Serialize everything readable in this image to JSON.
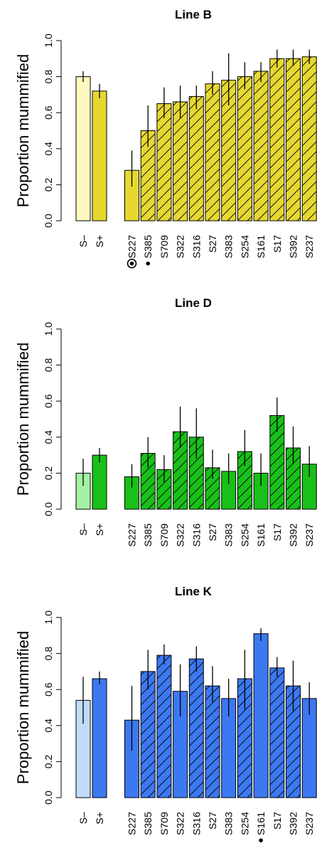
{
  "chart_data": [
    {
      "type": "bar",
      "title": "Line B",
      "ylabel": "Proportion mummified",
      "ylim": [
        0,
        1.0
      ],
      "yticks": [
        "0.0",
        "0.2",
        "0.4",
        "0.6",
        "0.8",
        "1.0"
      ],
      "colors": {
        "control_light": "#fff8c0",
        "main": "#e6d830"
      },
      "controls": [
        {
          "label": "S–",
          "value": 0.8,
          "err": [
            0.77,
            0.83
          ]
        },
        {
          "label": "S+",
          "value": 0.72,
          "err": [
            0.68,
            0.76
          ]
        }
      ],
      "categories": [
        "S227",
        "S385",
        "S709",
        "S322",
        "S316",
        "S27",
        "S383",
        "S254",
        "S161",
        "S17",
        "S392",
        "S237"
      ],
      "values": [
        0.28,
        0.5,
        0.65,
        0.66,
        0.69,
        0.76,
        0.78,
        0.8,
        0.83,
        0.9,
        0.9,
        0.91
      ],
      "err_low": [
        0.19,
        0.41,
        0.57,
        0.57,
        0.62,
        0.7,
        0.64,
        0.73,
        0.77,
        0.85,
        0.86,
        0.87
      ],
      "err_high": [
        0.39,
        0.64,
        0.74,
        0.75,
        0.75,
        0.83,
        0.93,
        0.88,
        0.88,
        0.95,
        0.95,
        0.95
      ],
      "hatched": [
        false,
        true,
        true,
        true,
        true,
        true,
        true,
        true,
        true,
        true,
        true,
        true
      ],
      "markers": [
        {
          "category": "S227",
          "symbol": "circled-dot"
        },
        {
          "category": "S385",
          "symbol": "dot"
        }
      ]
    },
    {
      "type": "bar",
      "title": "Line D",
      "ylabel": "Proportion mummified",
      "ylim": [
        0,
        1.0
      ],
      "yticks": [
        "0.0",
        "0.2",
        "0.4",
        "0.6",
        "0.8",
        "1.0"
      ],
      "colors": {
        "control_light": "#a4f2a4",
        "main": "#19c019"
      },
      "controls": [
        {
          "label": "S–",
          "value": 0.2,
          "err": [
            0.13,
            0.28
          ]
        },
        {
          "label": "S+",
          "value": 0.3,
          "err": [
            0.26,
            0.34
          ]
        }
      ],
      "categories": [
        "S227",
        "S385",
        "S709",
        "S322",
        "S316",
        "S27",
        "S383",
        "S254",
        "S161",
        "S17",
        "S392",
        "S237"
      ],
      "values": [
        0.18,
        0.31,
        0.22,
        0.43,
        0.4,
        0.23,
        0.21,
        0.32,
        0.2,
        0.52,
        0.34,
        0.25
      ],
      "err_low": [
        0.12,
        0.23,
        0.15,
        0.34,
        0.28,
        0.17,
        0.14,
        0.24,
        0.13,
        0.43,
        0.25,
        0.18
      ],
      "err_high": [
        0.25,
        0.4,
        0.3,
        0.57,
        0.56,
        0.33,
        0.31,
        0.44,
        0.31,
        0.62,
        0.46,
        0.35
      ],
      "hatched": [
        false,
        true,
        true,
        true,
        true,
        true,
        false,
        true,
        false,
        true,
        true,
        false
      ],
      "markers": []
    },
    {
      "type": "bar",
      "title": "Line K",
      "ylabel": "Proportion mummified",
      "ylim": [
        0,
        1.0
      ],
      "yticks": [
        "0.0",
        "0.2",
        "0.4",
        "0.6",
        "0.8",
        "1.0"
      ],
      "colors": {
        "control_light": "#c0dcfa",
        "main": "#3c78f0"
      },
      "controls": [
        {
          "label": "S–",
          "value": 0.54,
          "err": [
            0.41,
            0.67
          ]
        },
        {
          "label": "S+",
          "value": 0.66,
          "err": [
            0.63,
            0.7
          ]
        }
      ],
      "categories": [
        "S227",
        "S385",
        "S709",
        "S322",
        "S316",
        "S27",
        "S383",
        "S254",
        "S161",
        "S17",
        "S392",
        "S237"
      ],
      "values": [
        0.43,
        0.7,
        0.79,
        0.59,
        0.77,
        0.62,
        0.55,
        0.66,
        0.91,
        0.72,
        0.62,
        0.55
      ],
      "err_low": [
        0.26,
        0.6,
        0.74,
        0.45,
        0.7,
        0.53,
        0.45,
        0.49,
        0.87,
        0.67,
        0.48,
        0.46
      ],
      "err_high": [
        0.62,
        0.82,
        0.85,
        0.74,
        0.84,
        0.73,
        0.66,
        0.82,
        0.94,
        0.78,
        0.76,
        0.64
      ],
      "hatched": [
        false,
        true,
        true,
        false,
        true,
        true,
        false,
        true,
        false,
        true,
        true,
        false
      ],
      "markers": [
        {
          "category": "S161",
          "symbol": "dot"
        }
      ]
    }
  ]
}
